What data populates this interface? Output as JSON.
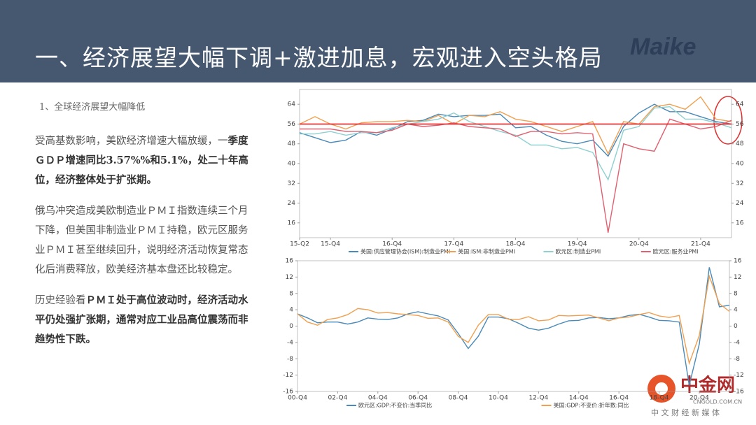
{
  "header": {
    "title": "一、经济展望大幅下调+激进加息，宏观进入空头格局",
    "logo": "Maike"
  },
  "text_panel": {
    "heading": "1、全球经济展望大幅降低",
    "paragraphs": [
      {
        "parts": [
          {
            "text": "受高基数影响，美欧经济增速大幅放缓，一",
            "bold": false
          },
          {
            "text": "季度ＧＤＰ增速同比3.57%%和5.1%，处二十年高位，经济整体处于扩张期。",
            "bold": true
          }
        ]
      },
      {
        "parts": [
          {
            "text": "俄乌冲突造成美欧制造业ＰＭＩ指数连续三个月下降，但美国非制造业ＰＭＩ持稳，欧元区服务业ＰＭＩ甚至继续回升，说明经济活动恢复常态化后消费释放，欧美经济基本盘还比较稳定。",
            "bold": false
          }
        ]
      },
      {
        "parts": [
          {
            "text": "历史经验看",
            "bold": false
          },
          {
            "text": "ＰＭＩ处于高位波动时，经济活动水平仍处强扩张期，通常对应工业品高位震荡而非趋势性下跌。",
            "bold": true
          }
        ]
      }
    ]
  },
  "chart_data": [
    {
      "type": "line",
      "categories": [
        "15-Q2",
        null,
        "15-Q4",
        null,
        null,
        null,
        "16-Q4",
        null,
        null,
        null,
        "17-Q4",
        null,
        null,
        null,
        "18-Q4",
        null,
        null,
        null,
        "19-Q4",
        null,
        null,
        null,
        "20-Q4",
        null,
        null,
        null,
        "21-Q4",
        null,
        null
      ],
      "series": [
        {
          "name": "美国:供应管理协会(ISM):制造业PMI",
          "color": "#4a8ab8",
          "values": [
            52.5,
            50.5,
            48.5,
            49.5,
            53,
            51.5,
            54,
            57,
            57.5,
            60,
            59,
            59.5,
            59.5,
            60,
            54.5,
            55,
            51.5,
            49,
            48,
            49.5,
            43,
            55,
            60.5,
            64,
            61,
            61,
            59,
            57,
            56
          ]
        },
        {
          "name": "美国:ISM:非制造业PMI",
          "color": "#f0a050",
          "values": [
            56,
            59,
            56,
            54,
            56.5,
            57,
            57,
            57.5,
            57,
            59.5,
            56,
            59.5,
            59,
            61,
            58,
            57,
            55,
            53,
            55,
            57,
            44,
            57,
            56,
            63,
            64,
            62,
            67,
            58,
            57
          ]
        },
        {
          "name": "欧元区:制造业PMI",
          "color": "#8fd0d0",
          "values": [
            52,
            52,
            53,
            51.5,
            52.5,
            52.5,
            54.5,
            56,
            57,
            58,
            60.5,
            57,
            55,
            53,
            51.5,
            47.5,
            47.5,
            46,
            46.5,
            44.5,
            33.5,
            53.5,
            55,
            62.5,
            63,
            58,
            58,
            56.5,
            54.5
          ]
        },
        {
          "name": "欧元区:服务业PMI",
          "color": "#e06070",
          "values": [
            54,
            54,
            54,
            53,
            53,
            52.5,
            53.5,
            56,
            55,
            55.5,
            56.5,
            55,
            54.5,
            54,
            51,
            53,
            53,
            52,
            52.5,
            52,
            12,
            48,
            46,
            45,
            58,
            56,
            54,
            55,
            57.5
          ]
        }
      ],
      "ylim": [
        10,
        70
      ],
      "yticks": [
        16,
        24,
        32,
        40,
        48,
        56,
        64
      ],
      "y2lim": [
        10,
        70
      ],
      "y2ticks": [
        16,
        24,
        32,
        40,
        48,
        56,
        64
      ],
      "reference_line": {
        "value": 56,
        "color": "#e03030"
      }
    },
    {
      "type": "line",
      "categories": [
        "00-Q4",
        null,
        null,
        null,
        "02-Q4",
        null,
        null,
        null,
        "04-Q4",
        null,
        null,
        null,
        "06-Q4",
        null,
        null,
        null,
        "08-Q4",
        null,
        null,
        null,
        "10-Q4",
        null,
        null,
        null,
        "12-Q4",
        null,
        null,
        null,
        "14-Q4",
        null,
        null,
        null,
        "16-Q4",
        null,
        null,
        null,
        "18-Q4",
        null,
        null,
        null,
        "20-Q4",
        null,
        null,
        null
      ],
      "series": [
        {
          "name": "欧元区:GDP:不变价:当季同比",
          "color": "#4a8ab8",
          "values": [
            3.0,
            2.0,
            0.8,
            1.0,
            1.0,
            0.5,
            1.0,
            2.0,
            1.7,
            1.6,
            2.0,
            3.0,
            3.5,
            3.0,
            2.5,
            1.5,
            -1.8,
            -5.5,
            -2.5,
            2.2,
            2.2,
            1.8,
            0.7,
            -0.5,
            -1.0,
            -0.5,
            0.5,
            1.3,
            1.4,
            2.0,
            2.1,
            1.8,
            2.0,
            2.6,
            2.9,
            2.2,
            1.4,
            1.3,
            1.0,
            -14.5,
            -4.4,
            14.4,
            4.7,
            5.1
          ]
        },
        {
          "name": "美国:GDP:不变价:折年数:同比",
          "color": "#f0a050",
          "values": [
            3.0,
            1.0,
            0.2,
            1.6,
            2.0,
            2.8,
            4.3,
            4.0,
            3.2,
            3.3,
            3.0,
            2.8,
            2.6,
            1.9,
            2.0,
            1.0,
            -2.5,
            -4.0,
            0.2,
            2.8,
            2.8,
            1.7,
            1.6,
            2.3,
            1.3,
            1.5,
            2.6,
            2.5,
            2.6,
            2.7,
            2.0,
            1.3,
            2.0,
            2.2,
            2.8,
            3.3,
            2.5,
            2.1,
            2.6,
            -9.1,
            -2.3,
            12.2,
            5.5,
            3.6
          ]
        }
      ],
      "ylim": [
        -16,
        16
      ],
      "yticks": [
        -16,
        -12,
        -8,
        -4,
        0,
        4,
        8,
        12,
        16
      ],
      "y2lim": [
        -16,
        16
      ],
      "y2ticks": [
        -16,
        -12,
        -8,
        -4,
        0,
        4,
        8,
        12,
        16
      ]
    }
  ],
  "watermark": {
    "name": "中金网",
    "site": "CNGOLD.COM.CN",
    "slogan": "中 文 财 经 新 媒 体"
  }
}
